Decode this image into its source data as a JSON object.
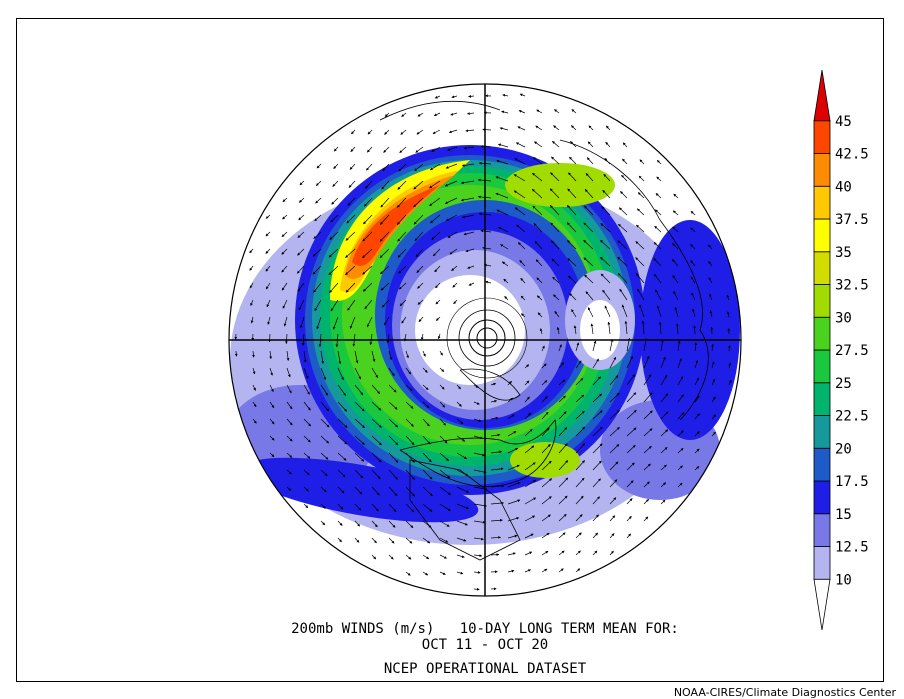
{
  "caption": {
    "line1": "200mb WINDS (m/s)   10-DAY LONG TERM MEAN FOR:",
    "line2": "OCT 11 - OCT 20",
    "line3": "NCEP OPERATIONAL DATASET"
  },
  "credit": "NOAA-CIRES/Climate Diagnostics Center",
  "colorbar": {
    "levels": [
      "10",
      "12.5",
      "15",
      "17.5",
      "20",
      "22.5",
      "25",
      "27.5",
      "30",
      "32.5",
      "35",
      "37.5",
      "40",
      "42.5",
      "45"
    ],
    "colors": [
      "#ffffff",
      "#b4b4f0",
      "#7878e6",
      "#1e1ee6",
      "#1e5ac8",
      "#16999c",
      "#00b46e",
      "#19c83c",
      "#4bd21e",
      "#a0dc00",
      "#d2dc00",
      "#ffff00",
      "#ffc800",
      "#ff8c00",
      "#ff4600",
      "#dc0000"
    ]
  },
  "map": {
    "projection": "north-polar-stereographic",
    "variable": "200mb wind speed",
    "units": "m/s"
  }
}
